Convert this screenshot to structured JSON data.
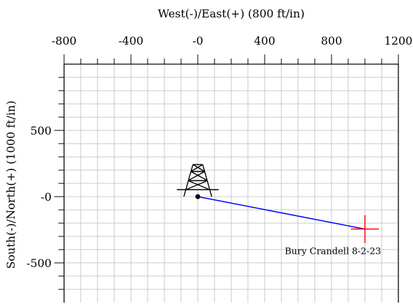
{
  "chart_data": {
    "type": "scatter",
    "title": "",
    "xlabel": "West(-)/East(+) (800 ft/in)",
    "ylabel": "South(-)/North(+) (1000 ft/in)",
    "xlim": [
      -800,
      1200
    ],
    "ylim": [
      -800,
      1000
    ],
    "x_ticks": [
      -800,
      -400,
      0,
      400,
      800,
      1200
    ],
    "x_tick_labels": [
      "-800",
      "-400",
      "-0",
      "400",
      "800",
      "1200"
    ],
    "y_ticks": [
      500,
      0,
      -500
    ],
    "y_tick_labels": [
      "500",
      "-0",
      "-500"
    ],
    "x_axis_position": "top",
    "grid": true,
    "grid_minor_x": 100,
    "grid_minor_y": 100,
    "series": [
      {
        "x": [
          0,
          1000
        ],
        "y": [
          0,
          -245
        ],
        "color": "#0000ff"
      }
    ],
    "markers": [
      {
        "kind": "surface-location",
        "x": 0,
        "y": 0,
        "color": "#000000"
      },
      {
        "kind": "target-cross",
        "x": 1000,
        "y": -245,
        "color": "#ff0000"
      }
    ],
    "annotations": [
      {
        "text": "Bury Crandell 8-2-23",
        "x": 1000,
        "y": -245
      }
    ],
    "icons": [
      "drilling-rig-icon"
    ]
  }
}
